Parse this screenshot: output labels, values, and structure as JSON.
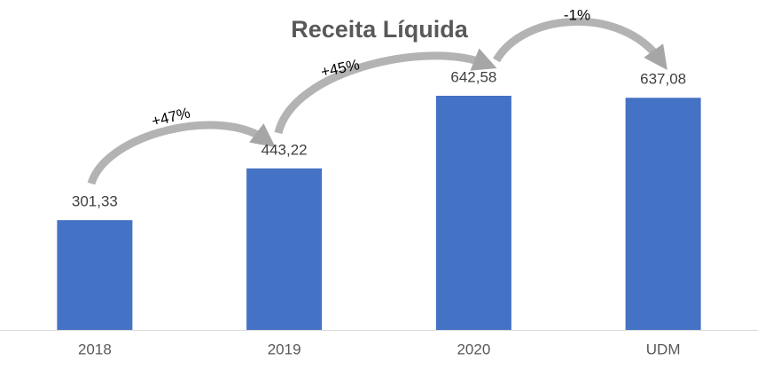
{
  "chart_data": {
    "type": "bar",
    "title": "Receita Líquida",
    "categories": [
      "2018",
      "2019",
      "2020",
      "UDM"
    ],
    "values": [
      301.33,
      443.22,
      642.58,
      637.08
    ],
    "value_labels": [
      "301,33",
      "443,22",
      "642,58",
      "637,08"
    ],
    "color": "#4472c4",
    "annotations": [
      "+47%",
      "+45%",
      "-1%"
    ]
  }
}
